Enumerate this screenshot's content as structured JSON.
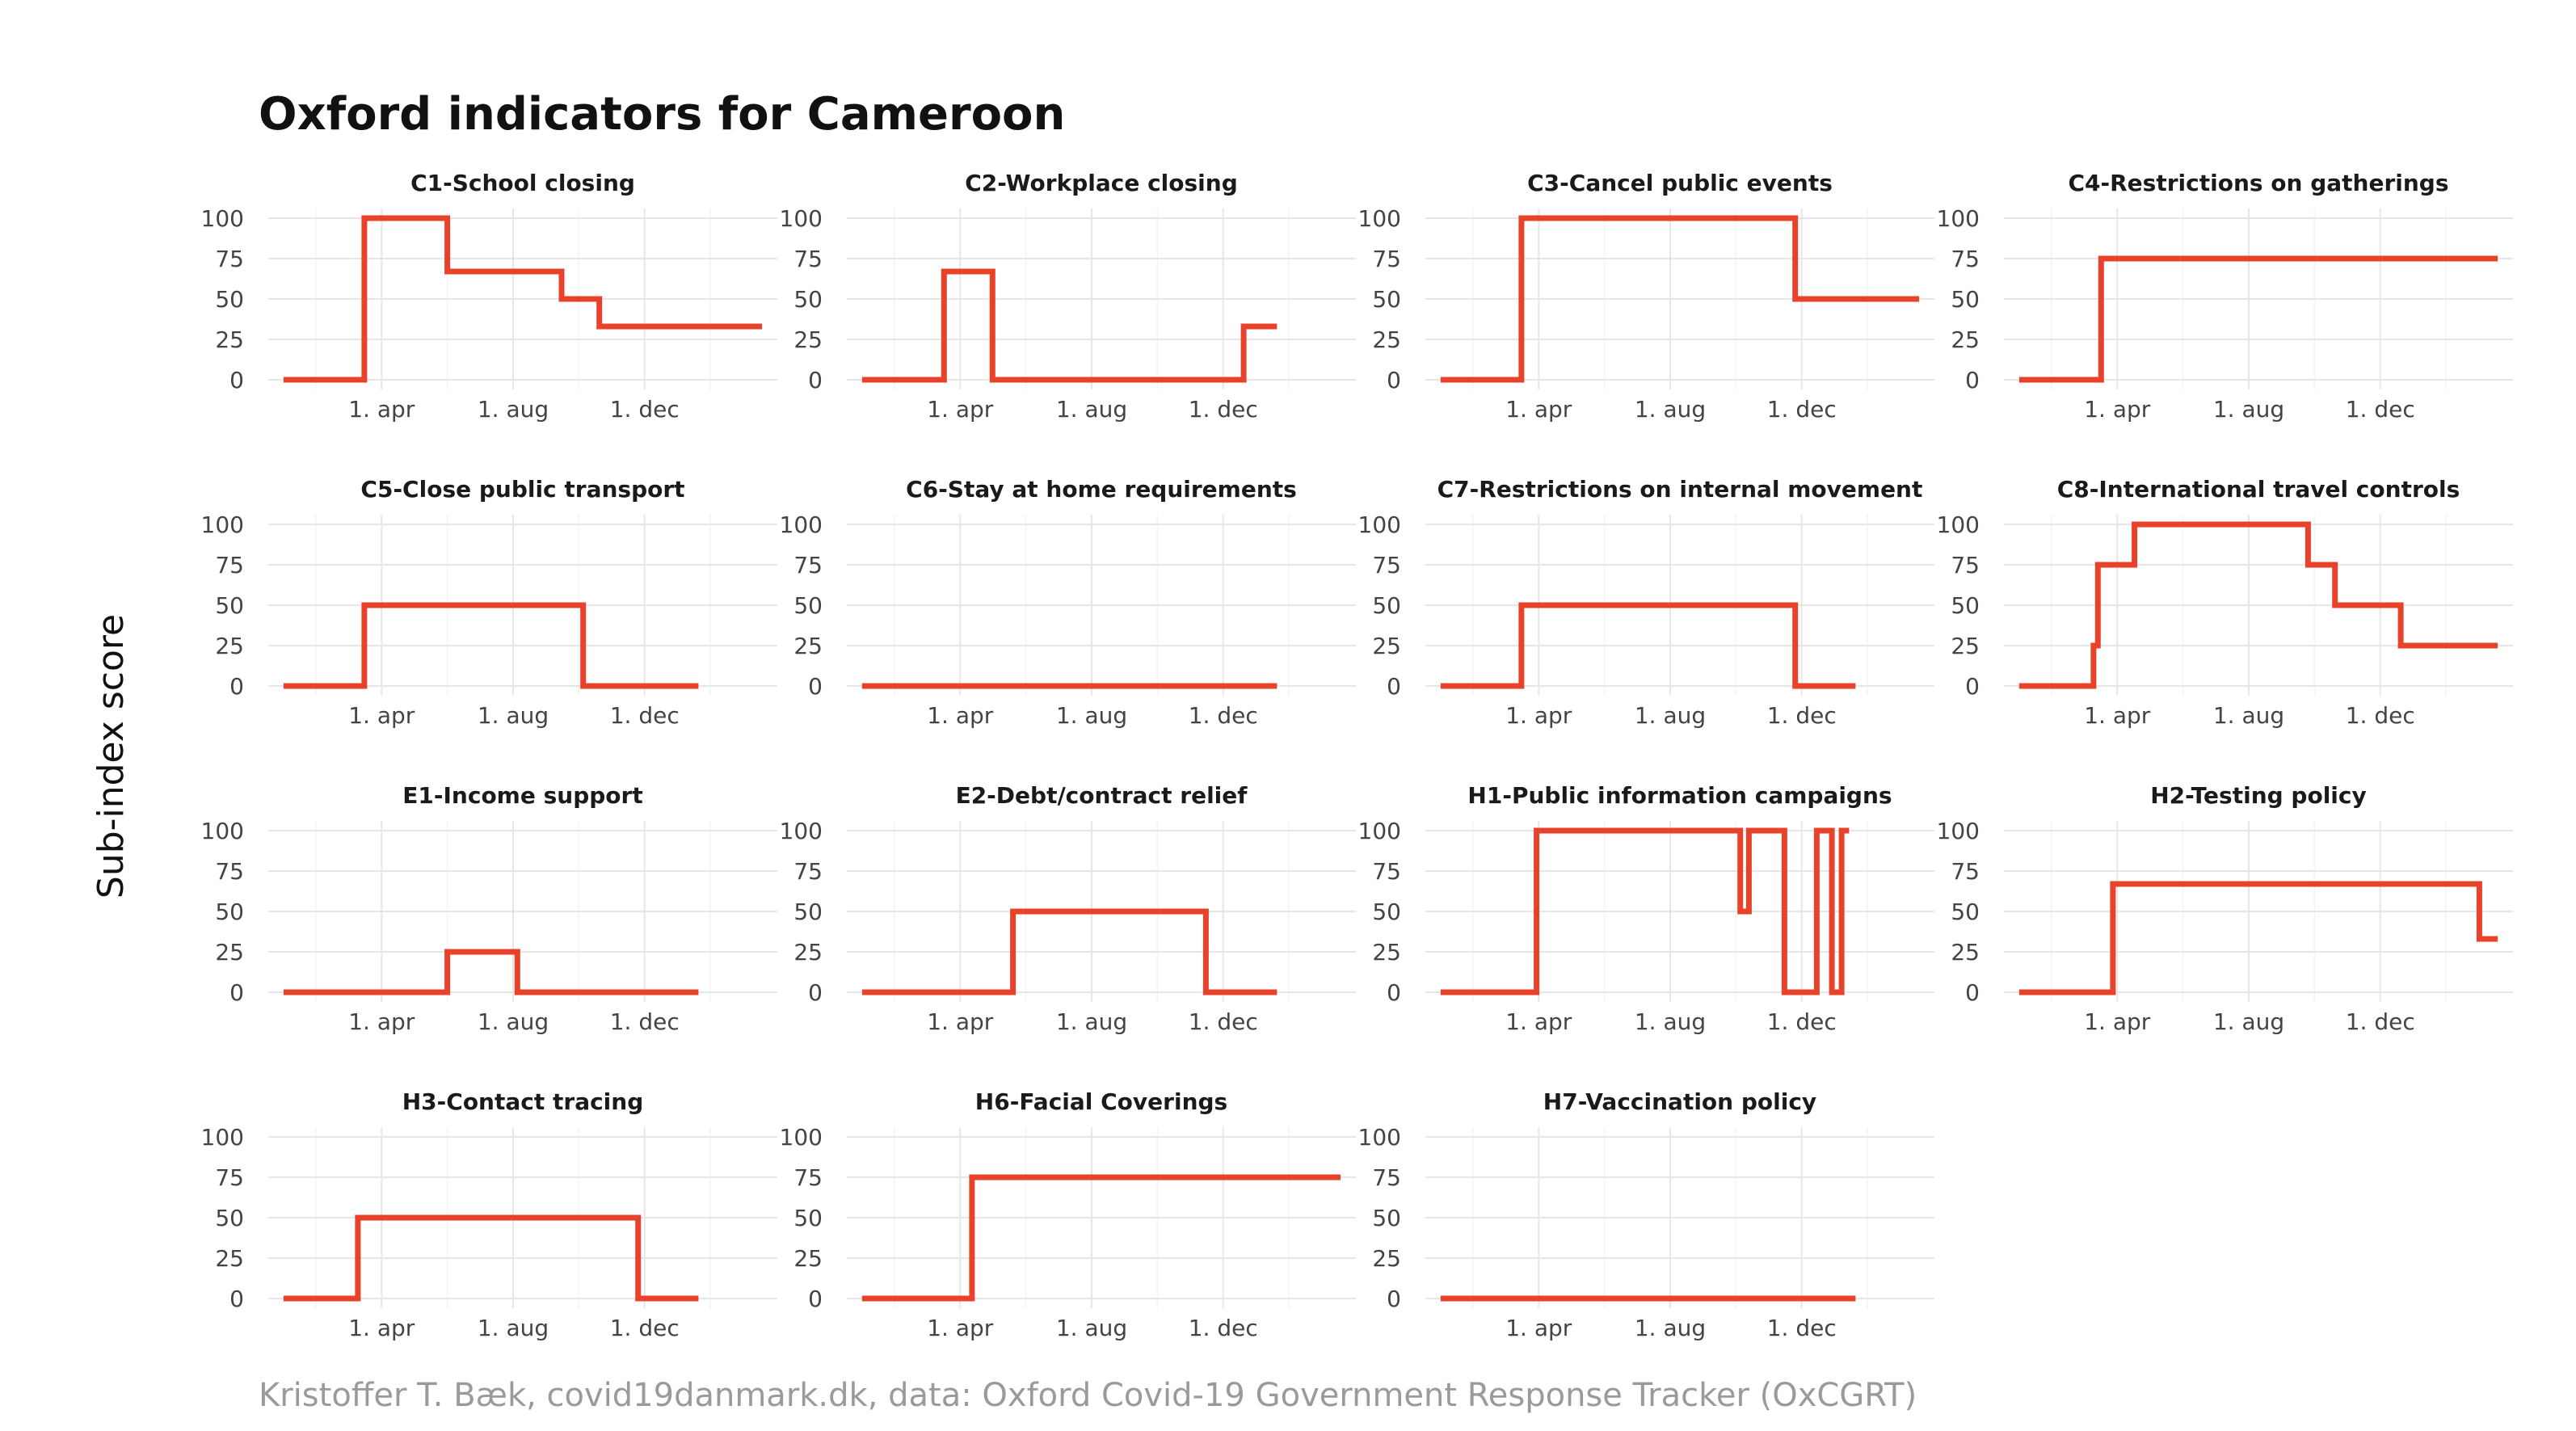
{
  "title": "Oxford indicators for Cameroon",
  "ylabel": "Sub-index score",
  "caption": "Kristoffer T. Bæk, covid19danmark.dk, data: Oxford Covid-19 Government Response Tracker (OxCGRT)",
  "colors": {
    "line": "#E8432A"
  },
  "chart_data": {
    "type": "line",
    "layout": "facet grid 4 columns x 4 rows (15 panels)",
    "grid": true,
    "x_unit": "date",
    "x_range": [
      "2020-01-01",
      "2021-03-20"
    ],
    "ylim": [
      0,
      100
    ],
    "x_ticks": [
      {
        "date": "2020-04-01",
        "label": "1. apr"
      },
      {
        "date": "2020-08-01",
        "label": "1. aug"
      },
      {
        "date": "2020-12-01",
        "label": "1. dec"
      }
    ],
    "y_ticks": [
      0,
      25,
      50,
      75,
      100
    ],
    "panels": [
      {
        "title": "C1-School closing",
        "points": [
          [
            "2020-01-01",
            0
          ],
          [
            "2020-03-16",
            0
          ],
          [
            "2020-03-16",
            100
          ],
          [
            "2020-06-01",
            100
          ],
          [
            "2020-06-01",
            67
          ],
          [
            "2020-09-15",
            67
          ],
          [
            "2020-09-15",
            50
          ],
          [
            "2020-10-20",
            50
          ],
          [
            "2020-10-20",
            33
          ],
          [
            "2021-03-20",
            33
          ]
        ]
      },
      {
        "title": "C2-Workplace closing",
        "points": [
          [
            "2020-01-01",
            0
          ],
          [
            "2020-03-17",
            0
          ],
          [
            "2020-03-17",
            67
          ],
          [
            "2020-05-01",
            67
          ],
          [
            "2020-05-01",
            0
          ],
          [
            "2020-12-20",
            0
          ],
          [
            "2020-12-20",
            33
          ],
          [
            "2021-01-20",
            33
          ]
        ]
      },
      {
        "title": "C3-Cancel public events",
        "points": [
          [
            "2020-01-01",
            0
          ],
          [
            "2020-03-16",
            0
          ],
          [
            "2020-03-16",
            100
          ],
          [
            "2020-11-25",
            100
          ],
          [
            "2020-11-25",
            50
          ],
          [
            "2021-03-20",
            50
          ]
        ]
      },
      {
        "title": "C4-Restrictions on gatherings",
        "points": [
          [
            "2020-01-01",
            0
          ],
          [
            "2020-03-17",
            0
          ],
          [
            "2020-03-17",
            75
          ],
          [
            "2021-03-20",
            75
          ]
        ]
      },
      {
        "title": "C5-Close public transport",
        "points": [
          [
            "2020-01-01",
            0
          ],
          [
            "2020-03-16",
            0
          ],
          [
            "2020-03-16",
            50
          ],
          [
            "2020-10-05",
            50
          ],
          [
            "2020-10-05",
            0
          ],
          [
            "2021-01-20",
            0
          ]
        ]
      },
      {
        "title": "C6-Stay at home requirements",
        "points": [
          [
            "2020-01-01",
            0
          ],
          [
            "2021-01-20",
            0
          ]
        ]
      },
      {
        "title": "C7-Restrictions on internal movement",
        "points": [
          [
            "2020-01-01",
            0
          ],
          [
            "2020-03-16",
            0
          ],
          [
            "2020-03-16",
            50
          ],
          [
            "2020-11-25",
            50
          ],
          [
            "2020-11-25",
            0
          ],
          [
            "2021-01-20",
            0
          ]
        ]
      },
      {
        "title": "C8-International travel controls",
        "points": [
          [
            "2020-01-01",
            0
          ],
          [
            "2020-03-10",
            0
          ],
          [
            "2020-03-10",
            25
          ],
          [
            "2020-03-14",
            25
          ],
          [
            "2020-03-14",
            75
          ],
          [
            "2020-04-17",
            75
          ],
          [
            "2020-04-17",
            100
          ],
          [
            "2020-09-25",
            100
          ],
          [
            "2020-09-25",
            75
          ],
          [
            "2020-10-20",
            75
          ],
          [
            "2020-10-20",
            50
          ],
          [
            "2020-12-20",
            50
          ],
          [
            "2020-12-20",
            25
          ],
          [
            "2021-03-20",
            25
          ]
        ]
      },
      {
        "title": "E1-Income support",
        "points": [
          [
            "2020-01-01",
            0
          ],
          [
            "2020-06-01",
            0
          ],
          [
            "2020-06-01",
            25
          ],
          [
            "2020-08-05",
            25
          ],
          [
            "2020-08-05",
            0
          ],
          [
            "2021-01-20",
            0
          ]
        ]
      },
      {
        "title": "E2-Debt/contract relief",
        "points": [
          [
            "2020-01-01",
            0
          ],
          [
            "2020-05-20",
            0
          ],
          [
            "2020-05-20",
            50
          ],
          [
            "2020-11-15",
            50
          ],
          [
            "2020-11-15",
            0
          ],
          [
            "2021-01-20",
            0
          ]
        ]
      },
      {
        "title": "H1-Public information campaigns",
        "points": [
          [
            "2020-01-01",
            0
          ],
          [
            "2020-03-30",
            0
          ],
          [
            "2020-03-30",
            100
          ],
          [
            "2020-10-05",
            100
          ],
          [
            "2020-10-05",
            50
          ],
          [
            "2020-10-13",
            50
          ],
          [
            "2020-10-13",
            100
          ],
          [
            "2020-11-15",
            100
          ],
          [
            "2020-11-15",
            0
          ],
          [
            "2020-12-15",
            0
          ],
          [
            "2020-12-15",
            100
          ],
          [
            "2020-12-29",
            100
          ],
          [
            "2020-12-29",
            0
          ],
          [
            "2021-01-07",
            0
          ],
          [
            "2021-01-07",
            100
          ],
          [
            "2021-01-14",
            100
          ]
        ]
      },
      {
        "title": "H2-Testing policy",
        "points": [
          [
            "2020-01-01",
            0
          ],
          [
            "2020-03-28",
            0
          ],
          [
            "2020-03-28",
            67
          ],
          [
            "2021-03-03",
            67
          ],
          [
            "2021-03-03",
            33
          ],
          [
            "2021-03-20",
            33
          ]
        ]
      },
      {
        "title": "H3-Contact tracing",
        "points": [
          [
            "2020-01-01",
            0
          ],
          [
            "2020-03-10",
            0
          ],
          [
            "2020-03-10",
            50
          ],
          [
            "2020-11-25",
            50
          ],
          [
            "2020-11-25",
            0
          ],
          [
            "2021-01-20",
            0
          ]
        ]
      },
      {
        "title": "H6-Facial Coverings",
        "points": [
          [
            "2020-01-01",
            0
          ],
          [
            "2020-04-12",
            0
          ],
          [
            "2020-04-12",
            75
          ],
          [
            "2021-03-20",
            75
          ]
        ]
      },
      {
        "title": "H7-Vaccination policy",
        "points": [
          [
            "2020-01-01",
            0
          ],
          [
            "2021-01-20",
            0
          ]
        ]
      }
    ]
  }
}
